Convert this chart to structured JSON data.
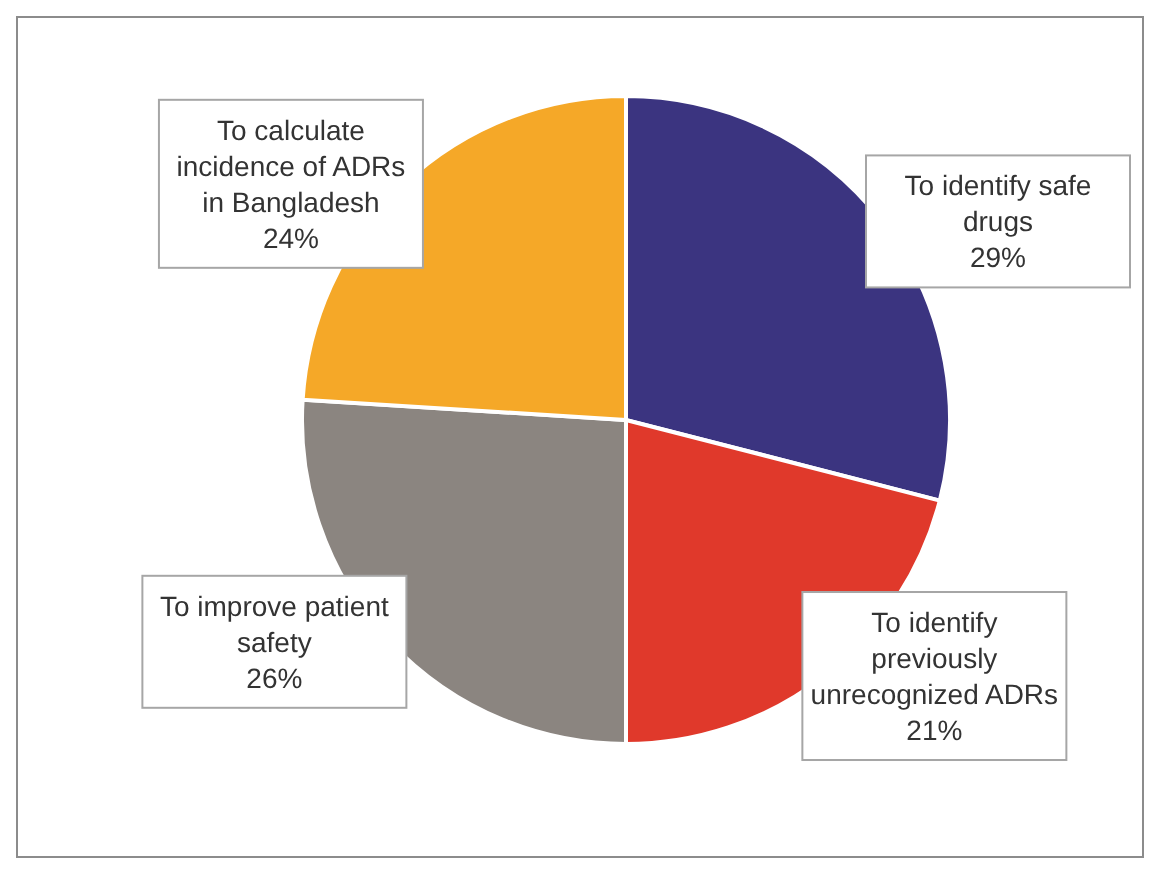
{
  "chart_data": {
    "type": "pie",
    "categories": [
      "To identify safe drugs",
      "To identify previously unrecognized ADRs",
      "To improve patient safety",
      "To calculate incidence of ADRs in Bangladesh"
    ],
    "values": [
      29,
      21,
      26,
      24
    ],
    "colors": [
      "#3b3480",
      "#e0392b",
      "#8b8580",
      "#f5a828"
    ],
    "value_labels": [
      "29%",
      "21%",
      "26%",
      "24%"
    ],
    "legend": false
  }
}
